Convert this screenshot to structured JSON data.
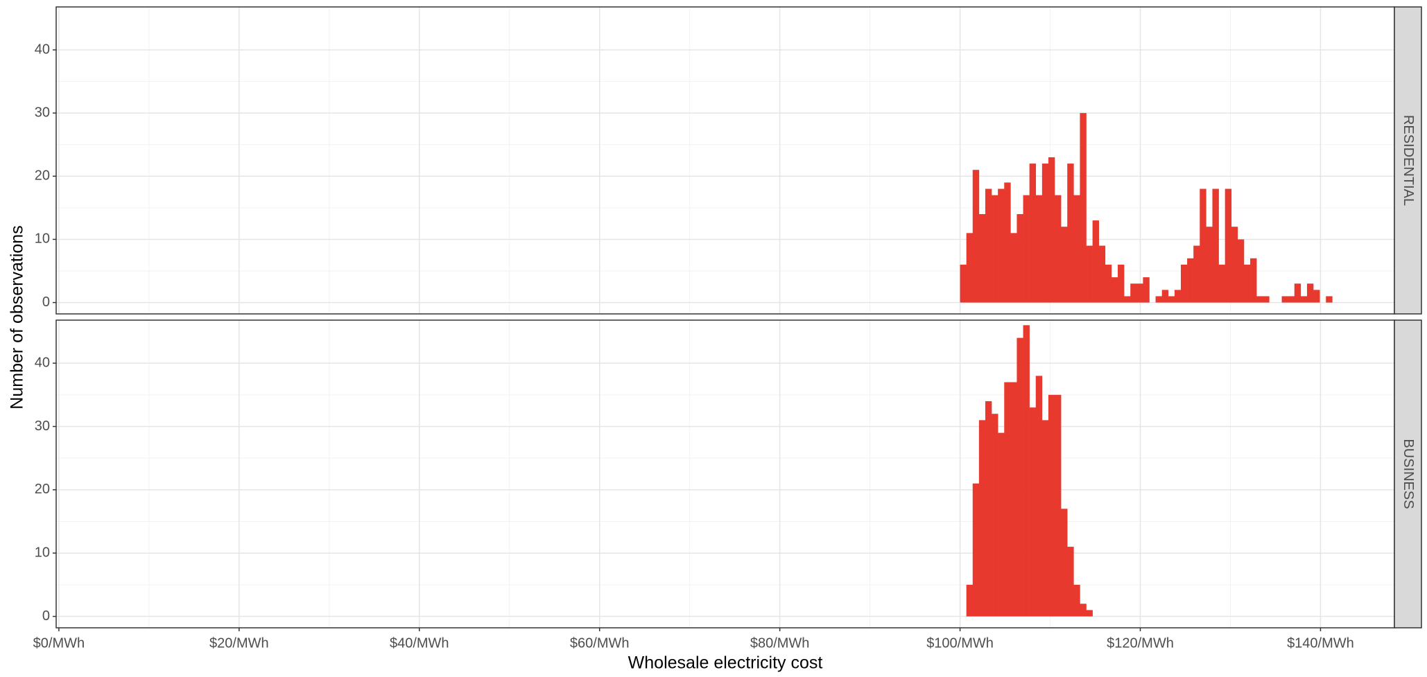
{
  "chart_data": {
    "type": "histogram",
    "xlabel": "Wholesale electricity cost",
    "ylabel": "Number of observations",
    "color": "#e8392f",
    "grid": true,
    "xlim": [
      -0.3,
      148.2
    ],
    "xticks": [
      {
        "value": 0,
        "label": "$0/MWh"
      },
      {
        "value": 20,
        "label": "$20/MWh"
      },
      {
        "value": 40,
        "label": "$40/MWh"
      },
      {
        "value": 60,
        "label": "$60/MWh"
      },
      {
        "value": 80,
        "label": "$80/MWh"
      },
      {
        "value": 100,
        "label": "$100/MWh"
      },
      {
        "value": 120,
        "label": "$120/MWh"
      },
      {
        "value": 140,
        "label": "$140/MWh"
      }
    ],
    "ylim": [
      -1.8,
      46.8
    ],
    "yticks": [
      0,
      10,
      20,
      30,
      40
    ],
    "series": [
      {
        "name": "RESIDENTIAL",
        "bins": [
          100,
          100.7,
          101.4,
          102.1,
          102.8,
          103.5,
          104.2,
          104.9,
          105.6,
          106.3,
          107,
          107.7,
          108.4,
          109.1,
          109.8,
          110.5,
          111.2,
          111.9,
          112.6,
          113.3,
          114,
          114.7,
          115.4,
          116.1,
          116.8,
          117.5,
          118.2,
          118.9,
          119.6,
          120.3,
          121,
          121.7,
          122.4,
          123.1,
          123.8,
          124.5,
          125.2,
          125.9,
          126.6,
          127.3,
          128,
          128.7,
          129.4,
          130.1,
          130.8,
          131.5,
          132.2,
          132.9,
          133.6,
          134.3,
          135,
          135.7,
          136.4,
          137.1,
          137.8,
          138.5,
          139.2,
          139.9,
          140.6,
          141.3
        ],
        "values": [
          6,
          11,
          21,
          14,
          18,
          17,
          18,
          19,
          11,
          14,
          17,
          22,
          17,
          22,
          23,
          17,
          12,
          22,
          17,
          30,
          9,
          13,
          9,
          6,
          4,
          6,
          1,
          3,
          3,
          4,
          0,
          1,
          2,
          1,
          2,
          6,
          7,
          9,
          18,
          12,
          18,
          6,
          18,
          12,
          10,
          6,
          7,
          1,
          1,
          0,
          0,
          1,
          1,
          3,
          1,
          3,
          2,
          0,
          1
        ]
      },
      {
        "name": "BUSINESS",
        "bins": [
          100.7,
          101.4,
          102.1,
          102.8,
          103.5,
          104.2,
          104.9,
          105.6,
          106.3,
          107,
          107.7,
          108.4,
          109.1,
          109.8,
          110.5,
          111.2,
          111.9,
          112.6,
          113.3,
          114,
          114.7
        ],
        "values": [
          5,
          21,
          31,
          34,
          32,
          29,
          37,
          37,
          44,
          46,
          33,
          38,
          31,
          35,
          35,
          17,
          11,
          5,
          2,
          1
        ]
      }
    ]
  }
}
